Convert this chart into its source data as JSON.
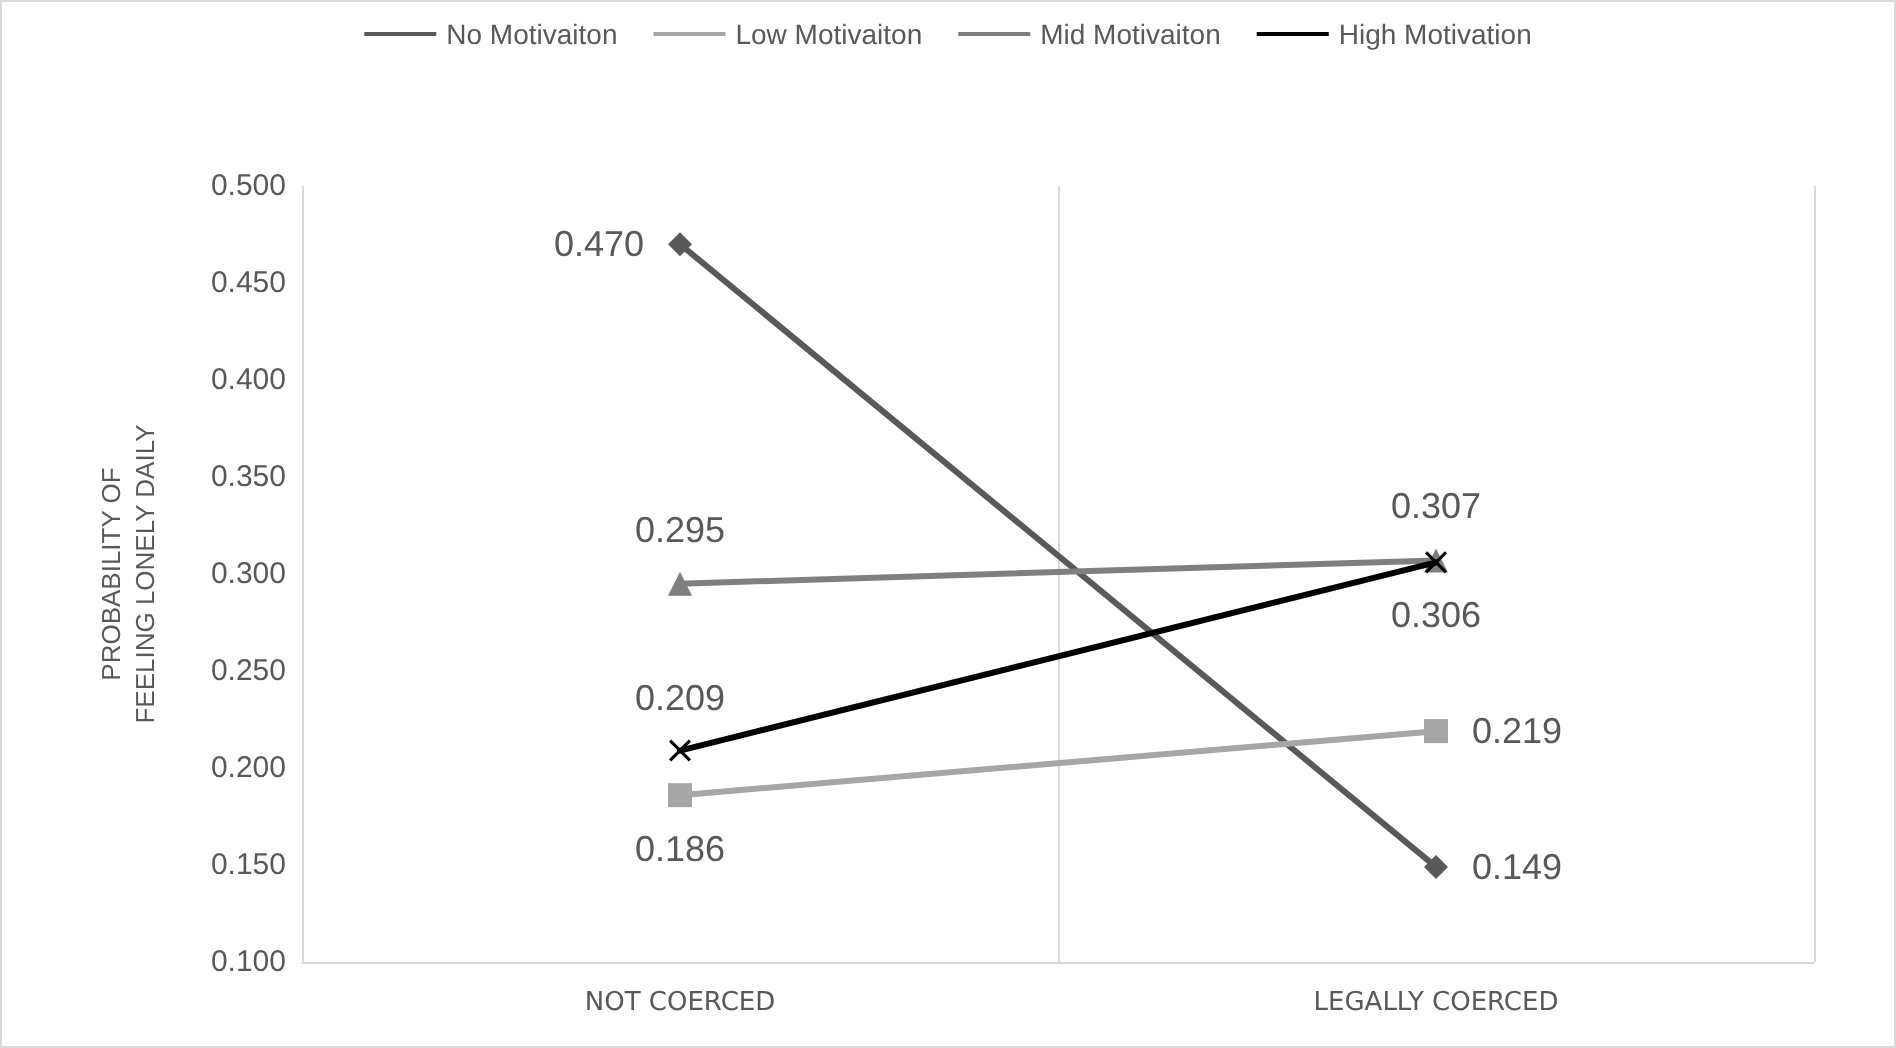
{
  "chart_data": {
    "type": "line",
    "ylabel": "PROBABILITY OF\nFEELING LONELY DAILY",
    "categories": [
      "NOT COERCED",
      "LEGALLY COERCED"
    ],
    "series": [
      {
        "name": "No Motivaiton",
        "color": "#595959",
        "marker": "diamond",
        "values": [
          0.47,
          0.149
        ],
        "value_labels": [
          "0.470",
          "0.149"
        ]
      },
      {
        "name": "Low Motivaiton",
        "color": "#a6a6a6",
        "marker": "square",
        "values": [
          0.186,
          0.219
        ],
        "value_labels": [
          "0.186",
          "0.219"
        ]
      },
      {
        "name": "Mid Motivaiton",
        "color": "#7f7f7f",
        "marker": "triangle",
        "values": [
          0.295,
          0.307
        ],
        "value_labels": [
          "0.295",
          "0.307"
        ]
      },
      {
        "name": "High Motivation",
        "color": "#000000",
        "marker": "cross",
        "values": [
          0.209,
          0.306
        ],
        "value_labels": [
          "0.209",
          "0.306"
        ]
      }
    ],
    "ylim": [
      0.1,
      0.5
    ],
    "yticks": [
      {
        "value": 0.1,
        "label": "0.100"
      },
      {
        "value": 0.15,
        "label": "0.150"
      },
      {
        "value": 0.2,
        "label": "0.200"
      },
      {
        "value": 0.25,
        "label": "0.250"
      },
      {
        "value": 0.3,
        "label": "0.300"
      },
      {
        "value": 0.35,
        "label": "0.350"
      },
      {
        "value": 0.4,
        "label": "0.400"
      },
      {
        "value": 0.45,
        "label": "0.450"
      },
      {
        "value": 0.5,
        "label": "0.500"
      }
    ],
    "grid": "x",
    "legend": "top",
    "line_style": "solid"
  }
}
